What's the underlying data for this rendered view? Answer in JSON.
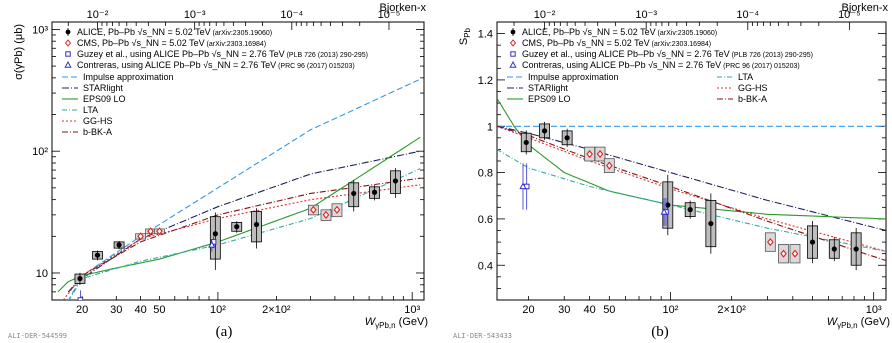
{
  "chart_data": [
    {
      "type": "scatter",
      "panel_caption": "(a)",
      "ylabel": "σ(γPb) (μb)",
      "xlabel_main": "W",
      "xlabel_sub": "γPb,n",
      "xlabel_unit": " (GeV)",
      "top_axis_label": "Bjorken-x",
      "image_tag": "ALI-DER-544599",
      "x_scale": "log",
      "y_scale": "log",
      "xlim": [
        14,
        1150
      ],
      "ylim": [
        6,
        1150
      ],
      "x_ticks": [
        {
          "v": 20,
          "label": "20"
        },
        {
          "v": 30,
          "label": "30"
        },
        {
          "v": 40,
          "label": "40"
        },
        {
          "v": 50,
          "label": "50"
        },
        {
          "v": 100,
          "label": "10²"
        },
        {
          "v": 200,
          "label": "2×10²"
        },
        {
          "v": 1000,
          "label": "10³"
        }
      ],
      "y_ticks": [
        {
          "v": 10,
          "label": "10"
        },
        {
          "v": 100,
          "label": "10²"
        },
        {
          "v": 1000,
          "label": "10³"
        }
      ],
      "top_ticks": [
        {
          "v": 0.01,
          "label": "10⁻²"
        },
        {
          "v": 0.001,
          "label": "10⁻³"
        },
        {
          "v": 0.0001,
          "label": "10⁻⁴"
        },
        {
          "v": 1e-05,
          "label": "10⁻⁵"
        }
      ],
      "legend_entries": [
        {
          "text": "ALICE, Pb–Pb √s_NN = 5.02 TeV",
          "small": " (arXiv:2305.19060)",
          "marker": "dot",
          "color": "#000000"
        },
        {
          "text": "CMS, Pb–Pb √s_NN = 5.02 TeV",
          "small": " (arXiv:2303.16984)",
          "marker": "diamond",
          "color": "#e02020"
        },
        {
          "text": "Guzey et al., using ALICE Pb–Pb √s_NN = 2.76 TeV",
          "small": " (PLB 726 (2013) 290-295)",
          "marker": "square",
          "color": "#3030d0"
        },
        {
          "text": "Contreras, using ALICE Pb–Pb √s_NN = 2.76 TeV",
          "small": " (PRC 96 (2017) 015203)",
          "marker": "triangle",
          "color": "#3030d0"
        }
      ],
      "model_entries": [
        {
          "name": "Impulse approximation",
          "color": "#3399ee",
          "dash": "6,3"
        },
        {
          "name": "STARlight",
          "color": "#202060",
          "dash": "7,2,1,2"
        },
        {
          "name": "EPS09 LO",
          "color": "#2a9a2a",
          "dash": ""
        },
        {
          "name": "LTA",
          "color": "#33aaaa",
          "dash": "5,2,1,2"
        },
        {
          "name": "GG-HS",
          "color": "#e03030",
          "dash": "2,2"
        },
        {
          "name": "b-BK-A",
          "color": "#8a1010",
          "dash": "6,2,1,2"
        }
      ],
      "models": [
        {
          "name": "Impulse approximation",
          "x": [
            16,
            20,
            40,
            100,
            300,
            1100
          ],
          "y": [
            5,
            9.5,
            20,
            50,
            150,
            390
          ]
        },
        {
          "name": "STARlight",
          "x": [
            17,
            20,
            40,
            100,
            300,
            1100
          ],
          "y": [
            7,
            9,
            19,
            35,
            65,
            100
          ]
        },
        {
          "name": "EPS09 LO",
          "x": [
            15,
            17,
            20,
            30,
            50,
            100,
            300,
            1100
          ],
          "y": [
            7,
            8.5,
            9.5,
            11,
            13,
            18,
            34,
            130
          ]
        },
        {
          "name": "LTA",
          "x": [
            16,
            20,
            40,
            100,
            300,
            1100
          ],
          "y": [
            5,
            9,
            12.5,
            17,
            28,
            72
          ]
        },
        {
          "name": "GG-HS",
          "x": [
            16,
            20,
            40,
            100,
            300,
            1100
          ],
          "y": [
            6,
            9.5,
            19,
            28,
            40,
            53
          ]
        },
        {
          "name": "b-BK-A",
          "x": [
            17,
            20,
            40,
            100,
            300,
            1100
          ],
          "y": [
            7,
            9.5,
            18,
            30,
            45,
            60
          ]
        }
      ],
      "series": [
        {
          "name": "ALICE, Pb–Pb √s_NN = 5.02 TeV",
          "points": [
            {
              "x": 19.5,
              "y": 9,
              "e": 0.8
            },
            {
              "x": 24,
              "y": 14,
              "e": 1
            },
            {
              "x": 31,
              "y": 17,
              "e": 1
            },
            {
              "x": 97,
              "y": 21,
              "e": 8
            },
            {
              "x": 125,
              "y": 24,
              "e": 2
            },
            {
              "x": 158,
              "y": 25,
              "e": 7
            },
            {
              "x": 500,
              "y": 45,
              "e": 10
            },
            {
              "x": 640,
              "y": 46,
              "e": 5
            },
            {
              "x": 820,
              "y": 57,
              "e": 12
            }
          ]
        },
        {
          "name": "CMS, Pb–Pb √s_NN = 5.02 TeV",
          "points": [
            {
              "x": 40,
              "y": 20,
              "e": 1
            },
            {
              "x": 45,
              "y": 22,
              "e": 1
            },
            {
              "x": 50,
              "y": 22,
              "e": 1
            },
            {
              "x": 310,
              "y": 33,
              "e": 3
            },
            {
              "x": 360,
              "y": 30,
              "e": 3
            },
            {
              "x": 410,
              "y": 33,
              "e": 4
            }
          ]
        },
        {
          "name": "Guzey et al., using ALICE Pb–Pb √s_NN = 2.76 TeV",
          "points": [
            {
              "x": 19.6,
              "y": 6,
              "e": 1.2
            },
            {
              "x": 95,
              "y": 18,
              "e": 2
            }
          ]
        },
        {
          "name": "Contreras, using ALICE Pb–Pb √s_NN = 2.76 TeV",
          "points": [
            {
              "x": 18.8,
              "y": 4.8,
              "e": 1
            },
            {
              "x": 93,
              "y": 17,
              "e": 2
            }
          ]
        }
      ]
    },
    {
      "type": "scatter",
      "panel_caption": "(b)",
      "ylabel_main": "S",
      "ylabel_sub": "Pb",
      "xlabel_main": "W",
      "xlabel_sub": "γPb,n",
      "xlabel_unit": " (GeV)",
      "top_axis_label": "Bjorken-x",
      "image_tag": "ALI-DER-543433",
      "x_scale": "log",
      "y_scale": "linear",
      "xlim": [
        14,
        1150
      ],
      "ylim": [
        0.25,
        1.45
      ],
      "x_ticks": [
        {
          "v": 20,
          "label": "20"
        },
        {
          "v": 30,
          "label": "30"
        },
        {
          "v": 40,
          "label": "40"
        },
        {
          "v": 50,
          "label": "50"
        },
        {
          "v": 100,
          "label": "10²"
        },
        {
          "v": 200,
          "label": "2×10²"
        },
        {
          "v": 1000,
          "label": "10³"
        }
      ],
      "y_ticks": [
        {
          "v": 0.4,
          "label": "0.4"
        },
        {
          "v": 0.6,
          "label": "0.6"
        },
        {
          "v": 0.8,
          "label": "0.8"
        },
        {
          "v": 1.0,
          "label": "1"
        },
        {
          "v": 1.2,
          "label": "1.2"
        },
        {
          "v": 1.4,
          "label": "1.4"
        }
      ],
      "top_ticks": [
        {
          "v": 0.01,
          "label": "10⁻²"
        },
        {
          "v": 0.001,
          "label": "10⁻³"
        },
        {
          "v": 0.0001,
          "label": "10⁻⁴"
        },
        {
          "v": 1e-05,
          "label": "10⁻⁵"
        }
      ],
      "legend_entries": [
        {
          "text": "ALICE, Pb–Pb √s_NN = 5.02 TeV",
          "small": " (arXiv:2305.19060)",
          "marker": "dot",
          "color": "#000000"
        },
        {
          "text": "CMS, Pb–Pb √s_NN = 5.02 TeV",
          "small": " (arXiv:2303.16984)",
          "marker": "diamond",
          "color": "#e02020"
        },
        {
          "text": "Guzey et al., using ALICE Pb–Pb √s_NN = 2.76 TeV",
          "small": " (PLB 726 (2013) 290-295)",
          "marker": "square",
          "color": "#3030d0"
        },
        {
          "text": "Contreras, using ALICE Pb–Pb √s_NN = 2.76 TeV",
          "small": " (PRC 96 (2017) 015203)",
          "marker": "triangle",
          "color": "#3030d0"
        }
      ],
      "model_entries": [
        {
          "name": "Impulse approximation",
          "color": "#3399ee",
          "dash": "6,3"
        },
        {
          "name": "STARlight",
          "color": "#202060",
          "dash": "7,2,1,2"
        },
        {
          "name": "EPS09 LO",
          "color": "#2a9a2a",
          "dash": ""
        },
        {
          "name": "LTA",
          "color": "#33aaaa",
          "dash": "5,2,1,2"
        },
        {
          "name": "GG-HS",
          "color": "#e03030",
          "dash": "2,2"
        },
        {
          "name": "b-BK-A",
          "color": "#8a1010",
          "dash": "6,2,1,2"
        }
      ],
      "models": [
        {
          "name": "Impulse approximation",
          "x": [
            14,
            1150
          ],
          "y": [
            1.0,
            1.0
          ]
        },
        {
          "name": "STARlight",
          "x": [
            14,
            20,
            40,
            100,
            300,
            1150
          ],
          "y": [
            1.0,
            0.97,
            0.9,
            0.8,
            0.68,
            0.55
          ]
        },
        {
          "name": "EPS09 LO",
          "x": [
            14,
            17,
            20,
            30,
            50,
            100,
            300,
            1150
          ],
          "y": [
            1.12,
            1.0,
            0.92,
            0.8,
            0.72,
            0.66,
            0.62,
            0.6
          ]
        },
        {
          "name": "LTA",
          "x": [
            14,
            20,
            40,
            100,
            300,
            1150
          ],
          "y": [
            0.9,
            0.82,
            0.74,
            0.66,
            0.56,
            0.46
          ]
        },
        {
          "name": "GG-HS",
          "x": [
            14,
            20,
            40,
            100,
            300,
            1150
          ],
          "y": [
            1.0,
            0.95,
            0.85,
            0.73,
            0.6,
            0.46
          ]
        },
        {
          "name": "b-BK-A",
          "x": [
            14,
            20,
            40,
            100,
            300,
            1150
          ],
          "y": [
            1.0,
            0.96,
            0.86,
            0.74,
            0.59,
            0.42
          ]
        }
      ],
      "series": [
        {
          "name": "ALICE, Pb–Pb √s_NN = 5.02 TeV",
          "points": [
            {
              "x": 19.5,
              "y": 0.93,
              "e": 0.04
            },
            {
              "x": 24,
              "y": 0.98,
              "e": 0.03
            },
            {
              "x": 31,
              "y": 0.95,
              "e": 0.03
            },
            {
              "x": 97,
              "y": 0.66,
              "e": 0.1
            },
            {
              "x": 125,
              "y": 0.64,
              "e": 0.03
            },
            {
              "x": 158,
              "y": 0.58,
              "e": 0.1
            },
            {
              "x": 500,
              "y": 0.5,
              "e": 0.07
            },
            {
              "x": 640,
              "y": 0.47,
              "e": 0.04
            },
            {
              "x": 820,
              "y": 0.47,
              "e": 0.07
            }
          ]
        },
        {
          "name": "CMS, Pb–Pb √s_NN = 5.02 TeV",
          "points": [
            {
              "x": 40,
              "y": 0.88,
              "e": 0.03
            },
            {
              "x": 45,
              "y": 0.88,
              "e": 0.03
            },
            {
              "x": 50,
              "y": 0.83,
              "e": 0.03
            },
            {
              "x": 310,
              "y": 0.5,
              "e": 0.04
            },
            {
              "x": 360,
              "y": 0.45,
              "e": 0.04
            },
            {
              "x": 410,
              "y": 0.45,
              "e": 0.04
            }
          ]
        },
        {
          "name": "Guzey et al., using ALICE Pb–Pb √s_NN = 2.76 TeV",
          "points": [
            {
              "x": 19.6,
              "y": 0.74,
              "e": 0.1
            },
            {
              "x": 95,
              "y": 0.63,
              "e": 0.06
            }
          ]
        },
        {
          "name": "Contreras, using ALICE Pb–Pb √s_NN = 2.76 TeV",
          "points": [
            {
              "x": 18.8,
              "y": 0.74,
              "e": 0.1
            },
            {
              "x": 93,
              "y": 0.63,
              "e": 0.06
            }
          ]
        }
      ]
    }
  ]
}
